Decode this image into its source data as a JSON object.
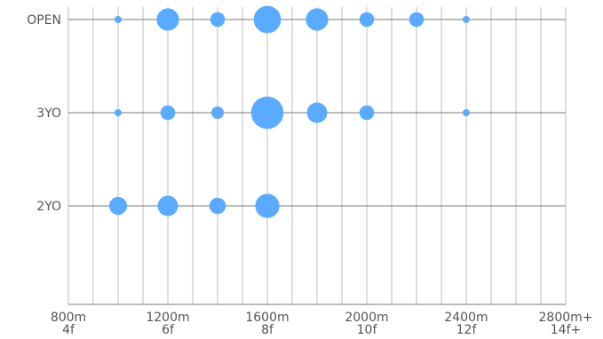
{
  "chart_data": {
    "type": "scatter",
    "title": "",
    "xlabel": "",
    "ylabel": "",
    "grid": true,
    "legend": "none",
    "color": "#5aabff",
    "x_unit": "m",
    "xlim": [
      800,
      2800
    ],
    "x_minor_step": 100,
    "x_ticks": [
      {
        "value": 800,
        "label": "800m",
        "sublabel": "4f"
      },
      {
        "value": 1200,
        "label": "1200m",
        "sublabel": "6f"
      },
      {
        "value": 1600,
        "label": "1600m",
        "sublabel": "8f"
      },
      {
        "value": 2000,
        "label": "2000m",
        "sublabel": "10f"
      },
      {
        "value": 2400,
        "label": "2400m",
        "sublabel": "12f"
      },
      {
        "value": 2800,
        "label": "2800m+",
        "sublabel": "14f+"
      }
    ],
    "categories": [
      "OPEN",
      "3YO",
      "2YO"
    ],
    "size_scale_note": "relative bubble size, 1 = smallest",
    "points": [
      {
        "category": "OPEN",
        "x": 1000,
        "size": 1
      },
      {
        "category": "OPEN",
        "x": 1200,
        "size": 5
      },
      {
        "category": "OPEN",
        "x": 1400,
        "size": 2
      },
      {
        "category": "OPEN",
        "x": 1600,
        "size": 8
      },
      {
        "category": "OPEN",
        "x": 1800,
        "size": 5
      },
      {
        "category": "OPEN",
        "x": 2000,
        "size": 2
      },
      {
        "category": "OPEN",
        "x": 2200,
        "size": 2
      },
      {
        "category": "OPEN",
        "x": 2400,
        "size": 1
      },
      {
        "category": "3YO",
        "x": 1000,
        "size": 1
      },
      {
        "category": "3YO",
        "x": 1200,
        "size": 2
      },
      {
        "category": "3YO",
        "x": 1400,
        "size": 1.5
      },
      {
        "category": "3YO",
        "x": 1600,
        "size": 12
      },
      {
        "category": "3YO",
        "x": 1800,
        "size": 4
      },
      {
        "category": "3YO",
        "x": 2000,
        "size": 2
      },
      {
        "category": "3YO",
        "x": 2400,
        "size": 1
      },
      {
        "category": "2YO",
        "x": 1000,
        "size": 3
      },
      {
        "category": "2YO",
        "x": 1200,
        "size": 4
      },
      {
        "category": "2YO",
        "x": 1400,
        "size": 2.5
      },
      {
        "category": "2YO",
        "x": 1600,
        "size": 6
      }
    ]
  }
}
